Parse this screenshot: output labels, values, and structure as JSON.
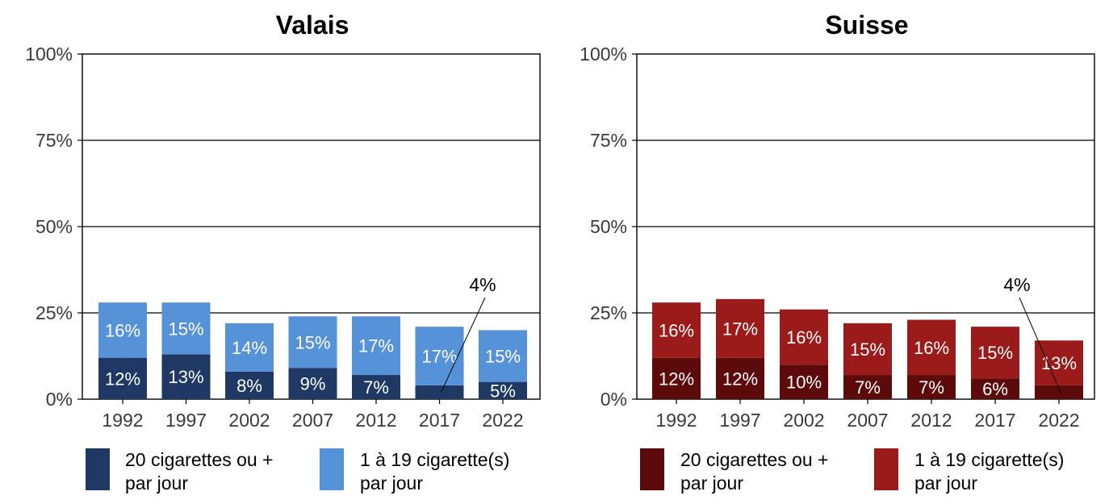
{
  "chart_data": [
    {
      "type": "bar",
      "stacked": true,
      "title": "Valais",
      "categories": [
        "1992",
        "1997",
        "2002",
        "2007",
        "2012",
        "2017",
        "2022"
      ],
      "ylim": [
        0,
        100
      ],
      "yticks": [
        "0%",
        "25%",
        "50%",
        "75%",
        "100%"
      ],
      "grid": true,
      "series": [
        {
          "name": "20 cigarettes ou + par jour",
          "name_lines": [
            "20 cigarettes ou +",
            "par jour"
          ],
          "color": "#1f3864",
          "values": [
            12,
            13,
            8,
            9,
            7,
            4,
            5
          ],
          "labels": [
            "12%",
            "13%",
            "8%",
            "9%",
            "7%",
            "4%",
            "5%"
          ]
        },
        {
          "name": "1 à 19 cigarette(s) par jour",
          "name_lines": [
            "1 à 19 cigarette(s)",
            "par jour"
          ],
          "color": "#5592d8",
          "values": [
            16,
            15,
            14,
            15,
            17,
            17,
            15
          ],
          "labels": [
            "16%",
            "15%",
            "14%",
            "15%",
            "17%",
            "17%",
            "15%"
          ]
        }
      ],
      "callout": {
        "series": 0,
        "index": 5,
        "label": "4%"
      }
    },
    {
      "type": "bar",
      "stacked": true,
      "title": "Suisse",
      "categories": [
        "1992",
        "1997",
        "2002",
        "2007",
        "2012",
        "2017",
        "2022"
      ],
      "ylim": [
        0,
        100
      ],
      "yticks": [
        "0%",
        "25%",
        "50%",
        "75%",
        "100%"
      ],
      "grid": true,
      "series": [
        {
          "name": "20 cigarettes ou + par jour",
          "name_lines": [
            "20 cigarettes ou +",
            "par jour"
          ],
          "color": "#5c0a0a",
          "values": [
            12,
            12,
            10,
            7,
            7,
            6,
            4
          ],
          "labels": [
            "12%",
            "12%",
            "10%",
            "7%",
            "7%",
            "6%",
            "4%"
          ]
        },
        {
          "name": "1 à 19 cigarette(s) par jour",
          "name_lines": [
            "1 à 19 cigarette(s)",
            "par jour"
          ],
          "color": "#9b1a1a",
          "values": [
            16,
            17,
            16,
            15,
            16,
            15,
            13
          ],
          "labels": [
            "16%",
            "17%",
            "16%",
            "15%",
            "16%",
            "15%",
            "13%"
          ]
        }
      ],
      "callout": {
        "series": 0,
        "index": 6,
        "label": "4%"
      }
    }
  ]
}
